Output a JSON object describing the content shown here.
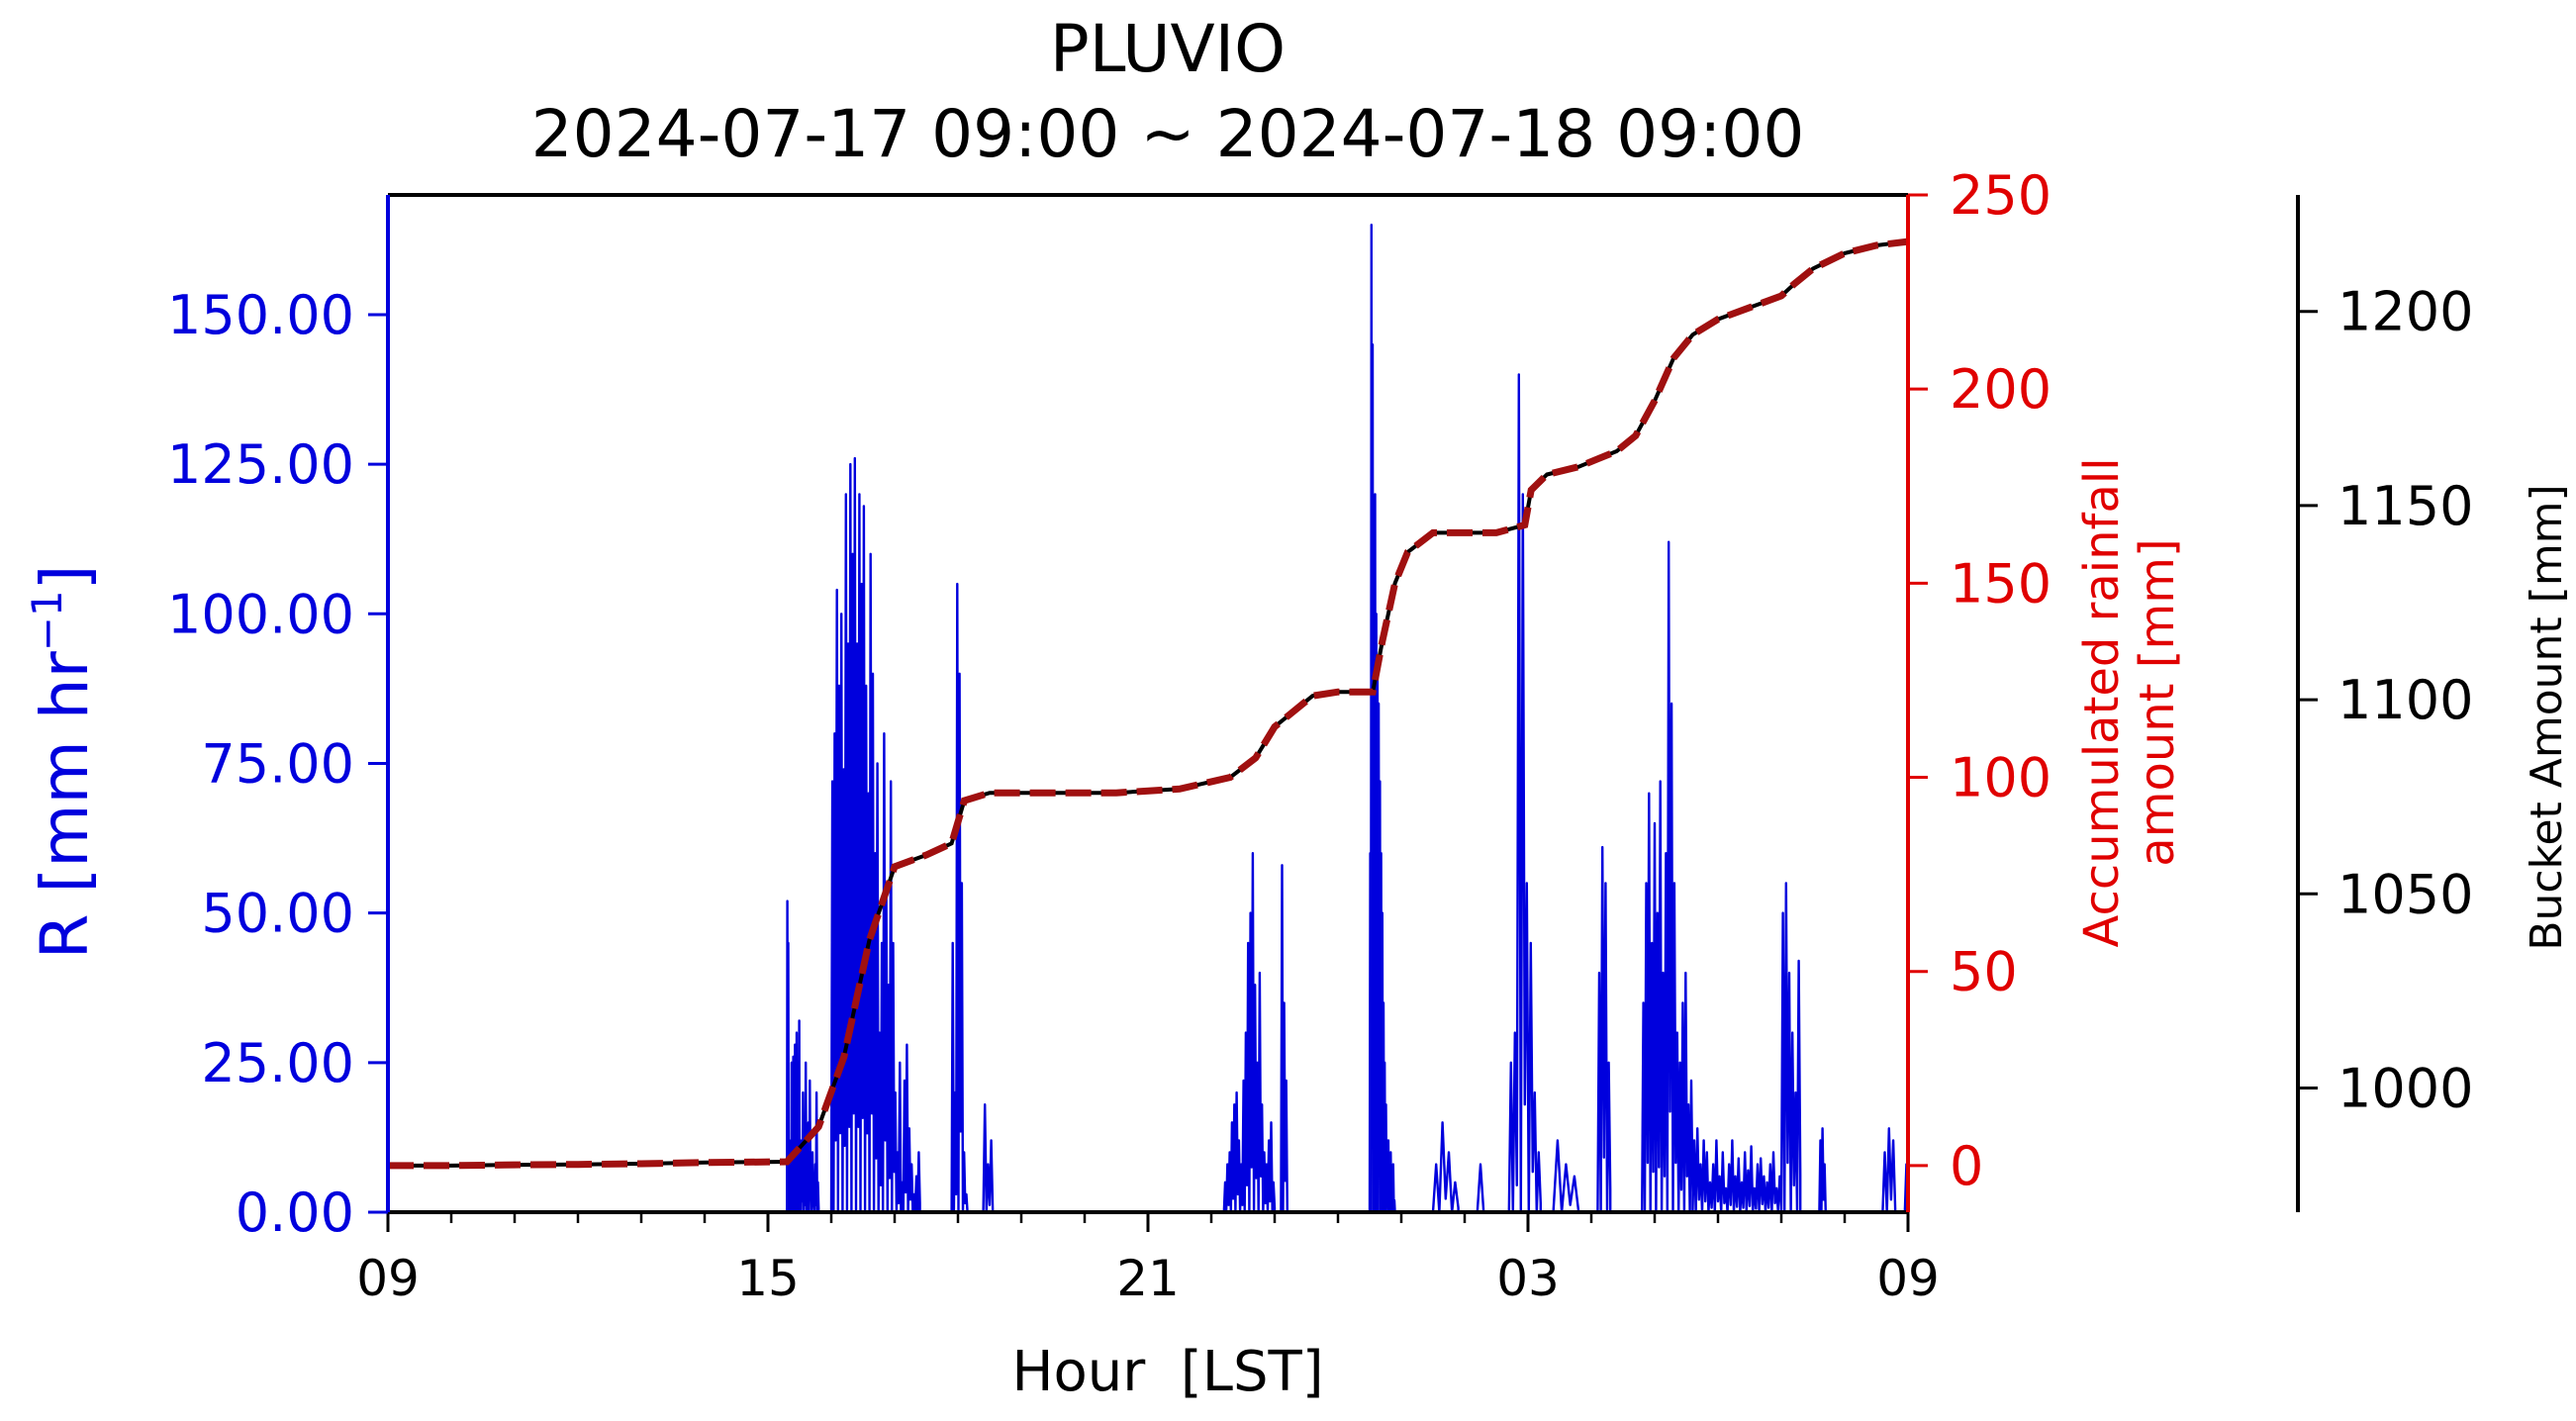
{
  "chart_data": {
    "type": "line",
    "title": "PLUVIO",
    "subtitle": "2024-07-17 09:00 ~ 2024-07-18 09:00",
    "xlabel": "Hour  [LST]",
    "x_ticks": [
      "09",
      "15",
      "21",
      "03",
      "09"
    ],
    "x_tick_hours": [
      0,
      6,
      12,
      18,
      24
    ],
    "xlim_hours": [
      0,
      24
    ],
    "grid": false,
    "colors": {
      "rain_rate": "#0000dd",
      "accum_fill": "#000000",
      "accum_dash": "#a01010",
      "right_axis": "#e00000",
      "bucket_axis": "#000000"
    },
    "axes": {
      "left": {
        "label": "R [mm hr",
        "label_sup": "−1",
        "label_end": "]",
        "ylim": [
          0,
          170
        ],
        "ticks": [
          0,
          25,
          50,
          75,
          100,
          125,
          150
        ],
        "tick_labels": [
          "0.00",
          "25.00",
          "50.00",
          "75.00",
          "100.00",
          "125.00",
          "150.00"
        ]
      },
      "right": {
        "label_line1": "Accumulated rainfall",
        "label_line2": "amount [mm]",
        "ylim": [
          -12,
          250
        ],
        "ticks": [
          0,
          50,
          100,
          150,
          200,
          250
        ],
        "tick_labels": [
          "0",
          "50",
          "100",
          "150",
          "200",
          "250"
        ]
      },
      "bucket": {
        "label": "Bucket Amount [mm]",
        "ylim": [
          968,
          1230
        ],
        "ticks": [
          1000,
          1050,
          1100,
          1150,
          1200
        ],
        "tick_labels": [
          "1000",
          "1050",
          "1100",
          "1150",
          "1200"
        ]
      }
    },
    "series": [
      {
        "axis": "left",
        "style": "spikes",
        "segments": [
          [
            6.3,
            6.5,
            [
              52,
              45,
              8,
              0,
              12,
              25,
              10,
              26,
              5,
              28,
              10,
              30,
              5,
              18,
              32
            ]
          ],
          [
            6.5,
            6.8,
            [
              5,
              12,
              20,
              8,
              25,
              3,
              15,
              22,
              5,
              10,
              2,
              8,
              20,
              5
            ]
          ],
          [
            7.0,
            8.1,
            [
              72,
              80,
              104,
              88,
              100,
              74,
              120,
              95,
              125,
              110,
              126,
              95,
              120,
              105,
              118,
              88,
              70,
              110,
              90,
              60,
              75,
              30,
              45,
              80,
              55,
              38,
              72,
              45,
              20,
              10,
              25
            ]
          ],
          [
            8.1,
            8.4,
            [
              5,
              22,
              28,
              14,
              8,
              3,
              6,
              10
            ]
          ],
          [
            8.9,
            9.15,
            [
              45,
              20,
              105,
              90,
              55,
              10,
              3
            ]
          ],
          [
            9.4,
            9.55,
            [
              18,
              8,
              12
            ]
          ],
          [
            13.2,
            14.0,
            [
              5,
              8,
              10,
              15,
              18,
              20,
              12,
              8,
              22,
              30,
              45,
              50,
              60,
              38,
              25,
              40,
              18,
              10,
              8,
              12,
              15,
              5
            ]
          ],
          [
            14.1,
            14.2,
            [
              58,
              35,
              22
            ]
          ],
          [
            15.5,
            15.9,
            [
              60,
              165,
              145,
              108,
              120,
              100,
              92,
              85,
              72,
              60,
              50,
              35,
              25,
              18,
              8,
              12,
              5,
              10,
              3,
              8,
              2
            ]
          ],
          [
            16.5,
            16.9,
            [
              8,
              15,
              10,
              5
            ]
          ],
          [
            17.2,
            17.3,
            [
              8
            ]
          ],
          [
            17.7,
            18.2,
            [
              25,
              30,
              140,
              120,
              55,
              45,
              20,
              10
            ]
          ],
          [
            18.4,
            18.8,
            [
              12,
              8,
              6
            ]
          ],
          [
            19.1,
            19.3,
            [
              40,
              61,
              55,
              25
            ]
          ],
          [
            19.8,
            20.6,
            [
              35,
              55,
              70,
              45,
              65,
              50,
              72,
              40,
              60,
              112,
              85,
              55,
              30,
              25,
              35,
              40,
              18,
              22
            ]
          ],
          [
            20.6,
            22.0,
            [
              12,
              14,
              8,
              12,
              10,
              5,
              8,
              12,
              6,
              10,
              4,
              8,
              12,
              6,
              9,
              5,
              10,
              7,
              11,
              4,
              8,
              9,
              6,
              5,
              8,
              10,
              4,
              6
            ]
          ],
          [
            22.0,
            22.3,
            [
              50,
              55,
              40,
              30,
              20,
              42
            ]
          ],
          [
            22.6,
            22.7,
            [
              12,
              14,
              8
            ]
          ],
          [
            23.6,
            23.8,
            [
              10,
              14,
              12
            ]
          ],
          [
            23.95,
            24.0,
            [
              8
            ]
          ]
        ]
      },
      {
        "axis": "right",
        "style": "cumulative",
        "points": [
          [
            0,
            0
          ],
          [
            1,
            0
          ],
          [
            2,
            0.2
          ],
          [
            3,
            0.3
          ],
          [
            4,
            0.5
          ],
          [
            5,
            0.8
          ],
          [
            6.3,
            1
          ],
          [
            6.8,
            10
          ],
          [
            7.2,
            28
          ],
          [
            7.6,
            58
          ],
          [
            8.0,
            77
          ],
          [
            8.5,
            80
          ],
          [
            8.9,
            83
          ],
          [
            9.1,
            94
          ],
          [
            9.5,
            96
          ],
          [
            10.5,
            96
          ],
          [
            11.5,
            96
          ],
          [
            12.5,
            97
          ],
          [
            13.3,
            100
          ],
          [
            13.7,
            105
          ],
          [
            14.0,
            113
          ],
          [
            14.3,
            117
          ],
          [
            14.6,
            121
          ],
          [
            15.0,
            122
          ],
          [
            15.55,
            122
          ],
          [
            15.7,
            135
          ],
          [
            15.9,
            150
          ],
          [
            16.1,
            158
          ],
          [
            16.5,
            163
          ],
          [
            17.5,
            163
          ],
          [
            17.95,
            165
          ],
          [
            18.05,
            174
          ],
          [
            18.3,
            178
          ],
          [
            18.8,
            180
          ],
          [
            19.1,
            182
          ],
          [
            19.4,
            184
          ],
          [
            19.7,
            188
          ],
          [
            20.0,
            197
          ],
          [
            20.3,
            208
          ],
          [
            20.6,
            214
          ],
          [
            21.0,
            218
          ],
          [
            21.5,
            221
          ],
          [
            22.0,
            224
          ],
          [
            22.2,
            227
          ],
          [
            22.5,
            231
          ],
          [
            23.0,
            235
          ],
          [
            23.5,
            237
          ],
          [
            24.0,
            238
          ]
        ]
      }
    ]
  }
}
